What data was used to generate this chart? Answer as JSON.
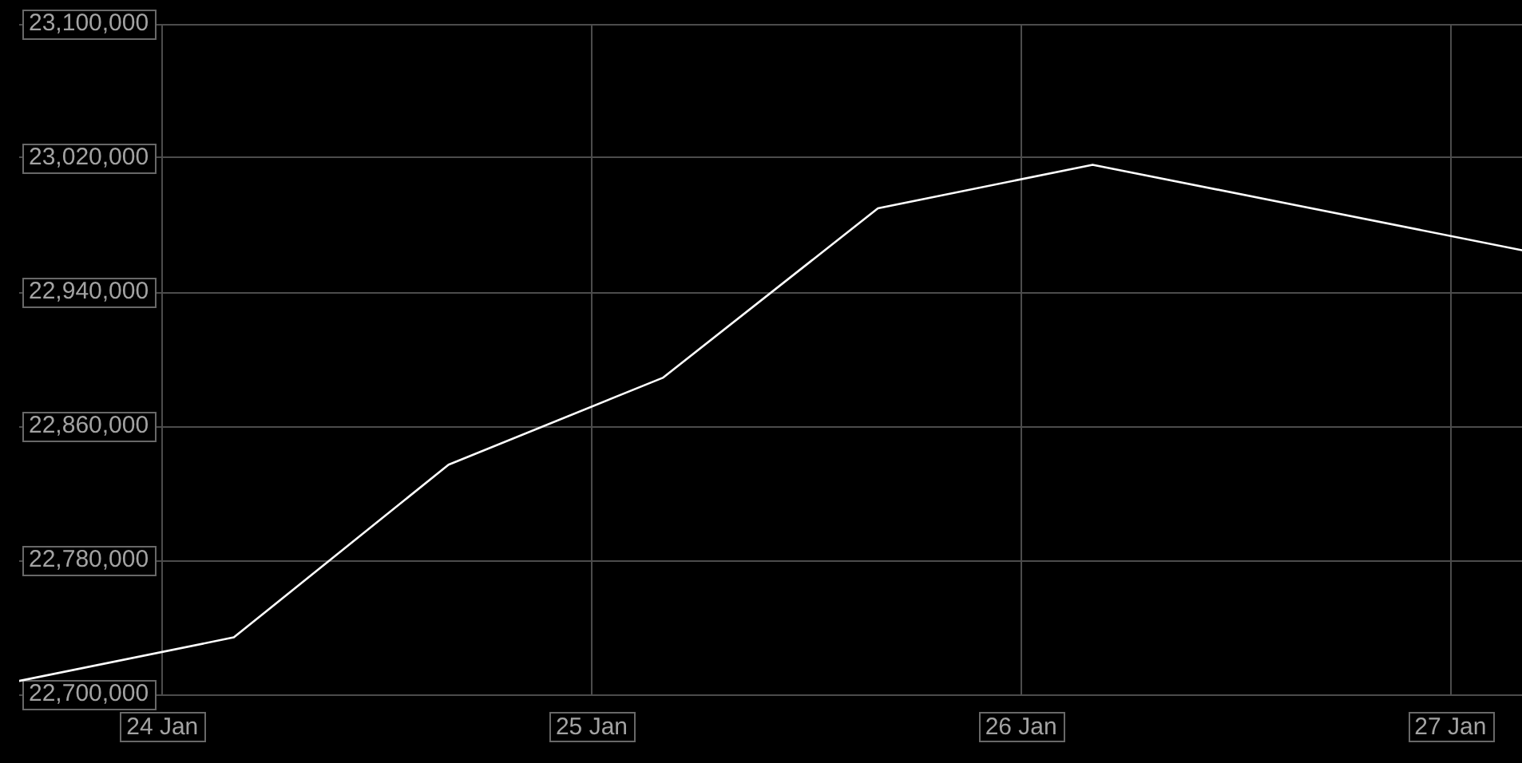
{
  "chart_data": {
    "type": "line",
    "x": [
      "--01-23T16:00",
      "--01-24T04:00",
      "--01-24T16:00",
      "--01-25T04:00",
      "--01-25T16:00",
      "--01-26T04:00",
      "--01-27T04:00"
    ],
    "series": [
      {
        "color": "#ffffff",
        "values": [
          22708000,
          22734000,
          22837000,
          22889000,
          22990000,
          23016000,
          22965000
        ]
      }
    ],
    "xlim": [
      "--01-23T16:00",
      "--01-27T04:00"
    ],
    "xticks": [
      {
        "value": "--01-24",
        "label": "24 Jan"
      },
      {
        "value": "--01-25",
        "label": "25 Jan"
      },
      {
        "value": "--01-26",
        "label": "26 Jan"
      },
      {
        "value": "--01-27",
        "label": "27 Jan"
      }
    ],
    "ylim": [
      22700000,
      23100000
    ],
    "yticks": [
      {
        "value": 22700000,
        "label": "22,700,000"
      },
      {
        "value": 22780000,
        "label": "22,780,000"
      },
      {
        "value": 22860000,
        "label": "22,860,000"
      },
      {
        "value": 22940000,
        "label": "22,940,000"
      },
      {
        "value": 23020000,
        "label": "23,020,000"
      },
      {
        "value": 23100000,
        "label": "23,100,000"
      }
    ],
    "grid": true,
    "marker": "none",
    "line_style": "solid"
  }
}
